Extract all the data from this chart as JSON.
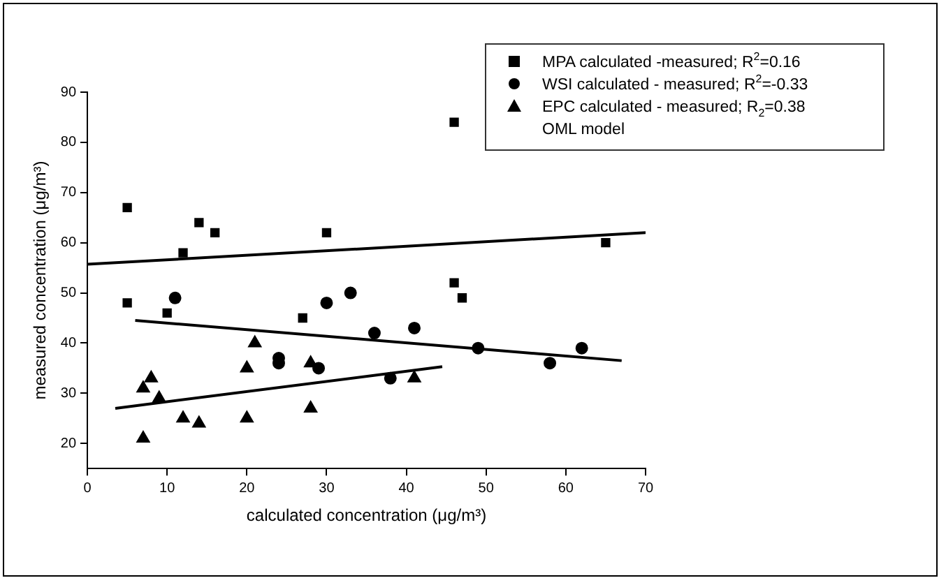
{
  "chart_data": {
    "type": "scatter",
    "xlabel": "calculated concentration (μg/m³)",
    "ylabel": "measured concentration (μg/m³)",
    "xlim": [
      0,
      70
    ],
    "xticks": [
      0,
      10,
      20,
      30,
      40,
      50,
      60,
      70
    ],
    "ylim": [
      15,
      90
    ],
    "yticks": [
      20,
      30,
      40,
      50,
      60,
      70,
      80,
      90
    ],
    "grid": false,
    "legend": "top right",
    "annotations": [
      "OML model"
    ],
    "series": [
      {
        "name": "MPA calculated -measured; R$^{2}$=0.16",
        "color": "#000000",
        "marker": "square",
        "x": [
          5,
          5,
          10,
          12,
          14,
          16,
          27,
          30,
          46,
          46,
          47,
          65
        ],
        "values": [
          48,
          67,
          46,
          58,
          64,
          62,
          45,
          62,
          84,
          52,
          49,
          60
        ]
      },
      {
        "name": "WSI calculated - measured; R$^{2}$=-0.33",
        "color": "#000000",
        "marker": "circle",
        "x": [
          11,
          24,
          24,
          29,
          30,
          33,
          36,
          38,
          41,
          49,
          58,
          62
        ],
        "values": [
          49,
          37,
          36,
          35,
          48,
          50,
          42,
          33,
          43,
          39,
          36,
          39
        ]
      },
      {
        "name": "EPC calculated - measured; R$_{2}$=0.38",
        "color": "#000000",
        "marker": "triangle",
        "x": [
          7,
          7,
          8,
          9,
          12,
          14,
          20,
          20,
          21,
          28,
          28,
          41
        ],
        "values": [
          31,
          21,
          33,
          29,
          25,
          24,
          35,
          25,
          40,
          36,
          27,
          33
        ]
      },
      {
        "type": "line",
        "color": "#000000",
        "marker": "none",
        "line_style": "solid",
        "x": [
          0,
          70
        ],
        "values": [
          55.7,
          62
        ]
      },
      {
        "type": "line",
        "color": "#000000",
        "marker": "none",
        "line_style": "solid",
        "x": [
          6,
          67
        ],
        "values": [
          44.5,
          36.5
        ]
      },
      {
        "type": "line",
        "color": "#000000",
        "marker": "none",
        "line_style": "solid",
        "x": [
          3.5,
          44.5
        ],
        "values": [
          27,
          35.3
        ]
      }
    ]
  }
}
